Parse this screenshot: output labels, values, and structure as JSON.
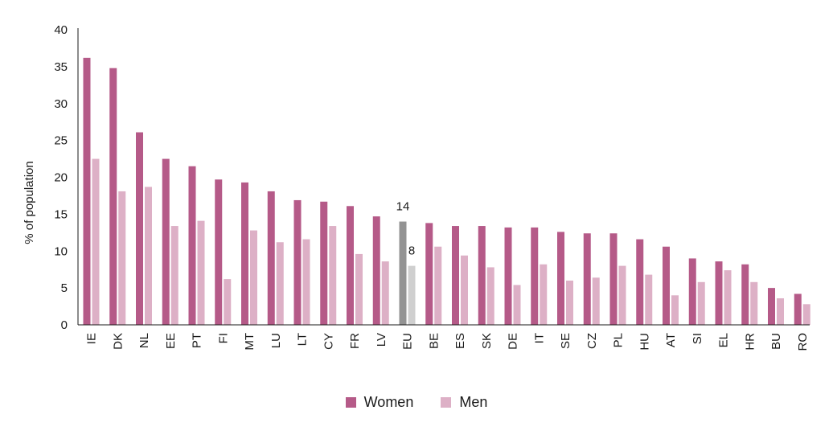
{
  "chart_data": {
    "type": "bar",
    "ylabel": "% of population",
    "ylim": [
      0,
      40
    ],
    "yticks": [
      0,
      5,
      10,
      15,
      20,
      25,
      30,
      35,
      40
    ],
    "categories": [
      "IE",
      "DK",
      "NL",
      "EE",
      "PT",
      "FI",
      "MT",
      "LU",
      "LT",
      "CY",
      "FR",
      "LV",
      "EU",
      "BE",
      "ES",
      "SK",
      "DE",
      "IT",
      "SE",
      "CZ",
      "PL",
      "HU",
      "AT",
      "SI",
      "EL",
      "HR",
      "BU",
      "RO"
    ],
    "series": [
      {
        "name": "Women",
        "color": "#b55a88",
        "values": [
          36.2,
          34.8,
          26.1,
          22.5,
          21.5,
          19.7,
          19.3,
          18.1,
          16.9,
          16.7,
          16.1,
          14.7,
          14,
          13.8,
          13.4,
          13.4,
          13.2,
          13.2,
          12.6,
          12.4,
          12.4,
          11.6,
          10.6,
          9.0,
          8.6,
          8.2,
          5.0,
          4.2
        ]
      },
      {
        "name": "Men",
        "color": "#ddb0c6",
        "values": [
          22.5,
          18.1,
          18.7,
          13.4,
          14.1,
          6.2,
          12.8,
          11.2,
          11.6,
          13.4,
          9.6,
          8.6,
          8,
          10.6,
          9.4,
          7.8,
          5.4,
          8.2,
          6.0,
          6.4,
          8.0,
          6.8,
          4.0,
          5.8,
          7.4,
          5.8,
          3.6,
          2.8
        ]
      }
    ],
    "highlight": {
      "category": "EU",
      "colors": [
        "#939393",
        "#cfcfcf"
      ]
    },
    "data_labels": [
      {
        "category": "EU",
        "series": "Women",
        "text": "14"
      },
      {
        "category": "EU",
        "series": "Men",
        "text": "8"
      }
    ],
    "legend": "bottom-center",
    "grid": false
  }
}
